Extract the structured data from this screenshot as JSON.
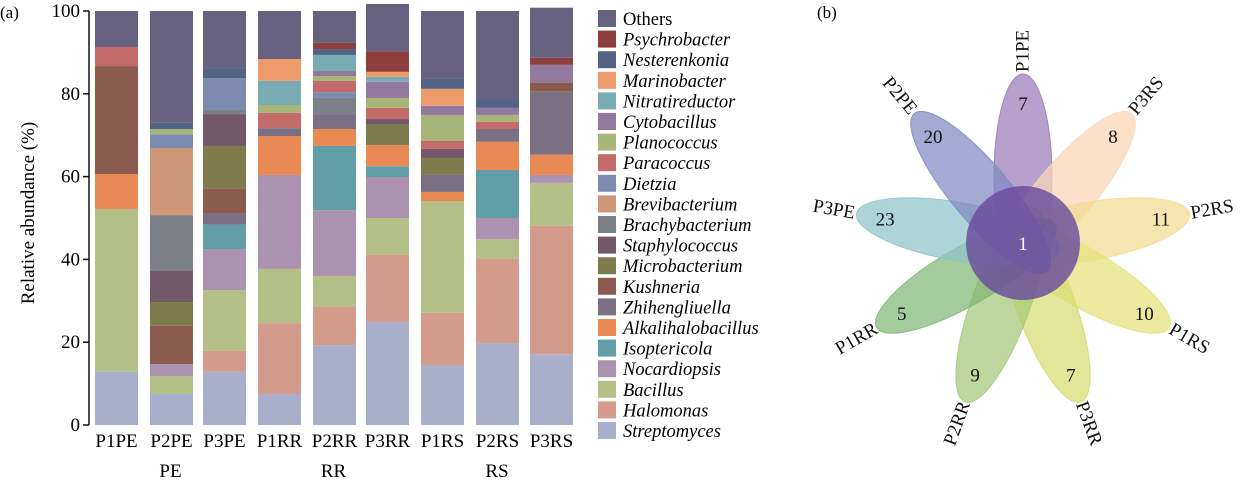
{
  "panels": {
    "a": "(a)",
    "b": "(b)"
  },
  "chart_data": [
    {
      "type": "bar",
      "stacked": true,
      "title": "",
      "xlabel": "",
      "ylabel": "Relative abundance (%)",
      "ylim": [
        0,
        100
      ],
      "yticks": [
        "0",
        "20",
        "40",
        "60",
        "80",
        "100"
      ],
      "categories": [
        "P1PE",
        "P2PE",
        "P3PE",
        "P1RR",
        "P2RR",
        "P3RR",
        "P1RS",
        "P2RS",
        "P3RS"
      ],
      "groups": [
        {
          "label": "PE",
          "members": [
            "P1PE",
            "P2PE",
            "P3PE"
          ]
        },
        {
          "label": "RR",
          "members": [
            "P1RR",
            "P2RR",
            "P3RR"
          ]
        },
        {
          "label": "RS",
          "members": [
            "P1RS",
            "P2RS",
            "P3RS"
          ]
        }
      ],
      "legend_position": "right",
      "series": [
        {
          "name": "Streptomyces",
          "italic": true,
          "color": "#a9aecb",
          "values": [
            12.9,
            7.5,
            12.9,
            7.5,
            19.3,
            24.9,
            14.5,
            19.8,
            17.1
          ]
        },
        {
          "name": "Halomonas",
          "italic": true,
          "color": "#d49a8c",
          "values": [
            0,
            0,
            5.0,
            17.1,
            9.2,
            16.2,
            12.6,
            20.3,
            31.0
          ]
        },
        {
          "name": "Bacillus",
          "italic": true,
          "color": "#b3bf86",
          "values": [
            39.3,
            4.3,
            14.7,
            13.1,
            7.5,
            8.9,
            27.0,
            4.8,
            10.4
          ]
        },
        {
          "name": "Nocardiopsis",
          "italic": true,
          "color": "#ab92b1",
          "values": [
            0,
            2.9,
            9.9,
            22.7,
            15.9,
            9.9,
            0,
            5.1,
            1.9
          ]
        },
        {
          "name": "Isoptericola",
          "italic": true,
          "color": "#629ea8",
          "values": [
            0,
            0,
            5.9,
            0,
            15.5,
            2.6,
            0,
            11.6,
            0
          ]
        },
        {
          "name": "Alkalihalobacillus",
          "italic": true,
          "color": "#e98a55",
          "values": [
            8.4,
            0,
            0,
            9.4,
            4.1,
            5.1,
            2.2,
            6.8,
            4.9
          ]
        },
        {
          "name": "Zhihengliuella",
          "italic": true,
          "color": "#7a6f83",
          "values": [
            0,
            0,
            2.8,
            1.9,
            3.6,
            0,
            4.1,
            3.1,
            15.2
          ]
        },
        {
          "name": "Kushneria",
          "italic": true,
          "color": "#8b5b50",
          "values": [
            26.1,
            9.3,
            6.0,
            0,
            0,
            0,
            0,
            0,
            2.2
          ]
        },
        {
          "name": "Microbacterium",
          "italic": true,
          "color": "#7e7c4d",
          "values": [
            0,
            5.7,
            10.2,
            0,
            0,
            5.1,
            4.1,
            0,
            0
          ]
        },
        {
          "name": "Staphylococcus",
          "italic": true,
          "color": "#725869",
          "values": [
            0,
            7.5,
            7.7,
            0,
            0,
            1.2,
            2.2,
            0,
            0
          ]
        },
        {
          "name": "Brachybacterium",
          "italic": true,
          "color": "#7d8187",
          "values": [
            0,
            13.5,
            1.0,
            0,
            3.9,
            0,
            0,
            0,
            0
          ]
        },
        {
          "name": "Brevibacterium",
          "italic": true,
          "color": "#cd9777",
          "values": [
            0,
            16.2,
            0,
            0,
            0,
            0,
            0,
            0,
            0
          ]
        },
        {
          "name": "Dietzia",
          "italic": true,
          "color": "#7d8ab0",
          "values": [
            0,
            3.3,
            7.7,
            0,
            1.4,
            0,
            0,
            0,
            0
          ]
        },
        {
          "name": "Paracoccus",
          "italic": true,
          "color": "#c26b6a",
          "values": [
            4.6,
            0,
            0,
            3.7,
            2.7,
            2.7,
            1.9,
            1.7,
            0
          ]
        },
        {
          "name": "Planococcus",
          "italic": true,
          "color": "#a8b578",
          "values": [
            0,
            1.3,
            0,
            1.9,
            1.2,
            2.4,
            6.3,
            1.7,
            0
          ]
        },
        {
          "name": "Cytobacillus",
          "italic": true,
          "color": "#9379a0",
          "values": [
            0,
            0,
            0,
            0,
            1.2,
            3.9,
            2.2,
            1.7,
            4.3
          ]
        },
        {
          "name": "Nitratireductor",
          "italic": true,
          "color": "#78abb3",
          "values": [
            0,
            0,
            0,
            5.8,
            3.9,
            1.2,
            0,
            0,
            0
          ]
        },
        {
          "name": "Marinobacter",
          "italic": true,
          "color": "#ee9b6c",
          "values": [
            0,
            0,
            0,
            5.3,
            0,
            1.2,
            4.1,
            0,
            0
          ]
        },
        {
          "name": "Nesterenkonia",
          "italic": true,
          "color": "#536385",
          "values": [
            0,
            1.6,
            2.2,
            0,
            1.4,
            0,
            2.4,
            1.9,
            0
          ]
        },
        {
          "name": "Psychrobacter",
          "italic": true,
          "color": "#8e3f3d",
          "values": [
            0,
            0,
            0,
            0,
            1.5,
            5.0,
            0,
            0,
            1.7
          ]
        },
        {
          "name": "Others",
          "italic": false,
          "color": "#66617f",
          "values": [
            8.7,
            26.9,
            14.0,
            11.6,
            7.7,
            11.4,
            16.4,
            21.5,
            12.1
          ]
        }
      ]
    },
    {
      "type": "venn",
      "title": "",
      "shared": "1",
      "shared_color": "#6a4c9c",
      "sets": [
        {
          "name": "P1PE",
          "unique": "7",
          "color": "#9a7db8"
        },
        {
          "name": "P3RS",
          "unique": "8",
          "color": "#fbd5b5"
        },
        {
          "name": "P2RS",
          "unique": "11",
          "color": "#f2db93"
        },
        {
          "name": "P1RS",
          "unique": "10",
          "color": "#e4e27a"
        },
        {
          "name": "P3RR",
          "unique": "7",
          "color": "#d5dc72"
        },
        {
          "name": "P2RR",
          "unique": "9",
          "color": "#a3c978"
        },
        {
          "name": "P1RR",
          "unique": "5",
          "color": "#7fb774"
        },
        {
          "name": "P3PE",
          "unique": "23",
          "color": "#8fc4c9"
        },
        {
          "name": "P2PE",
          "unique": "20",
          "color": "#8289c3"
        }
      ]
    }
  ]
}
